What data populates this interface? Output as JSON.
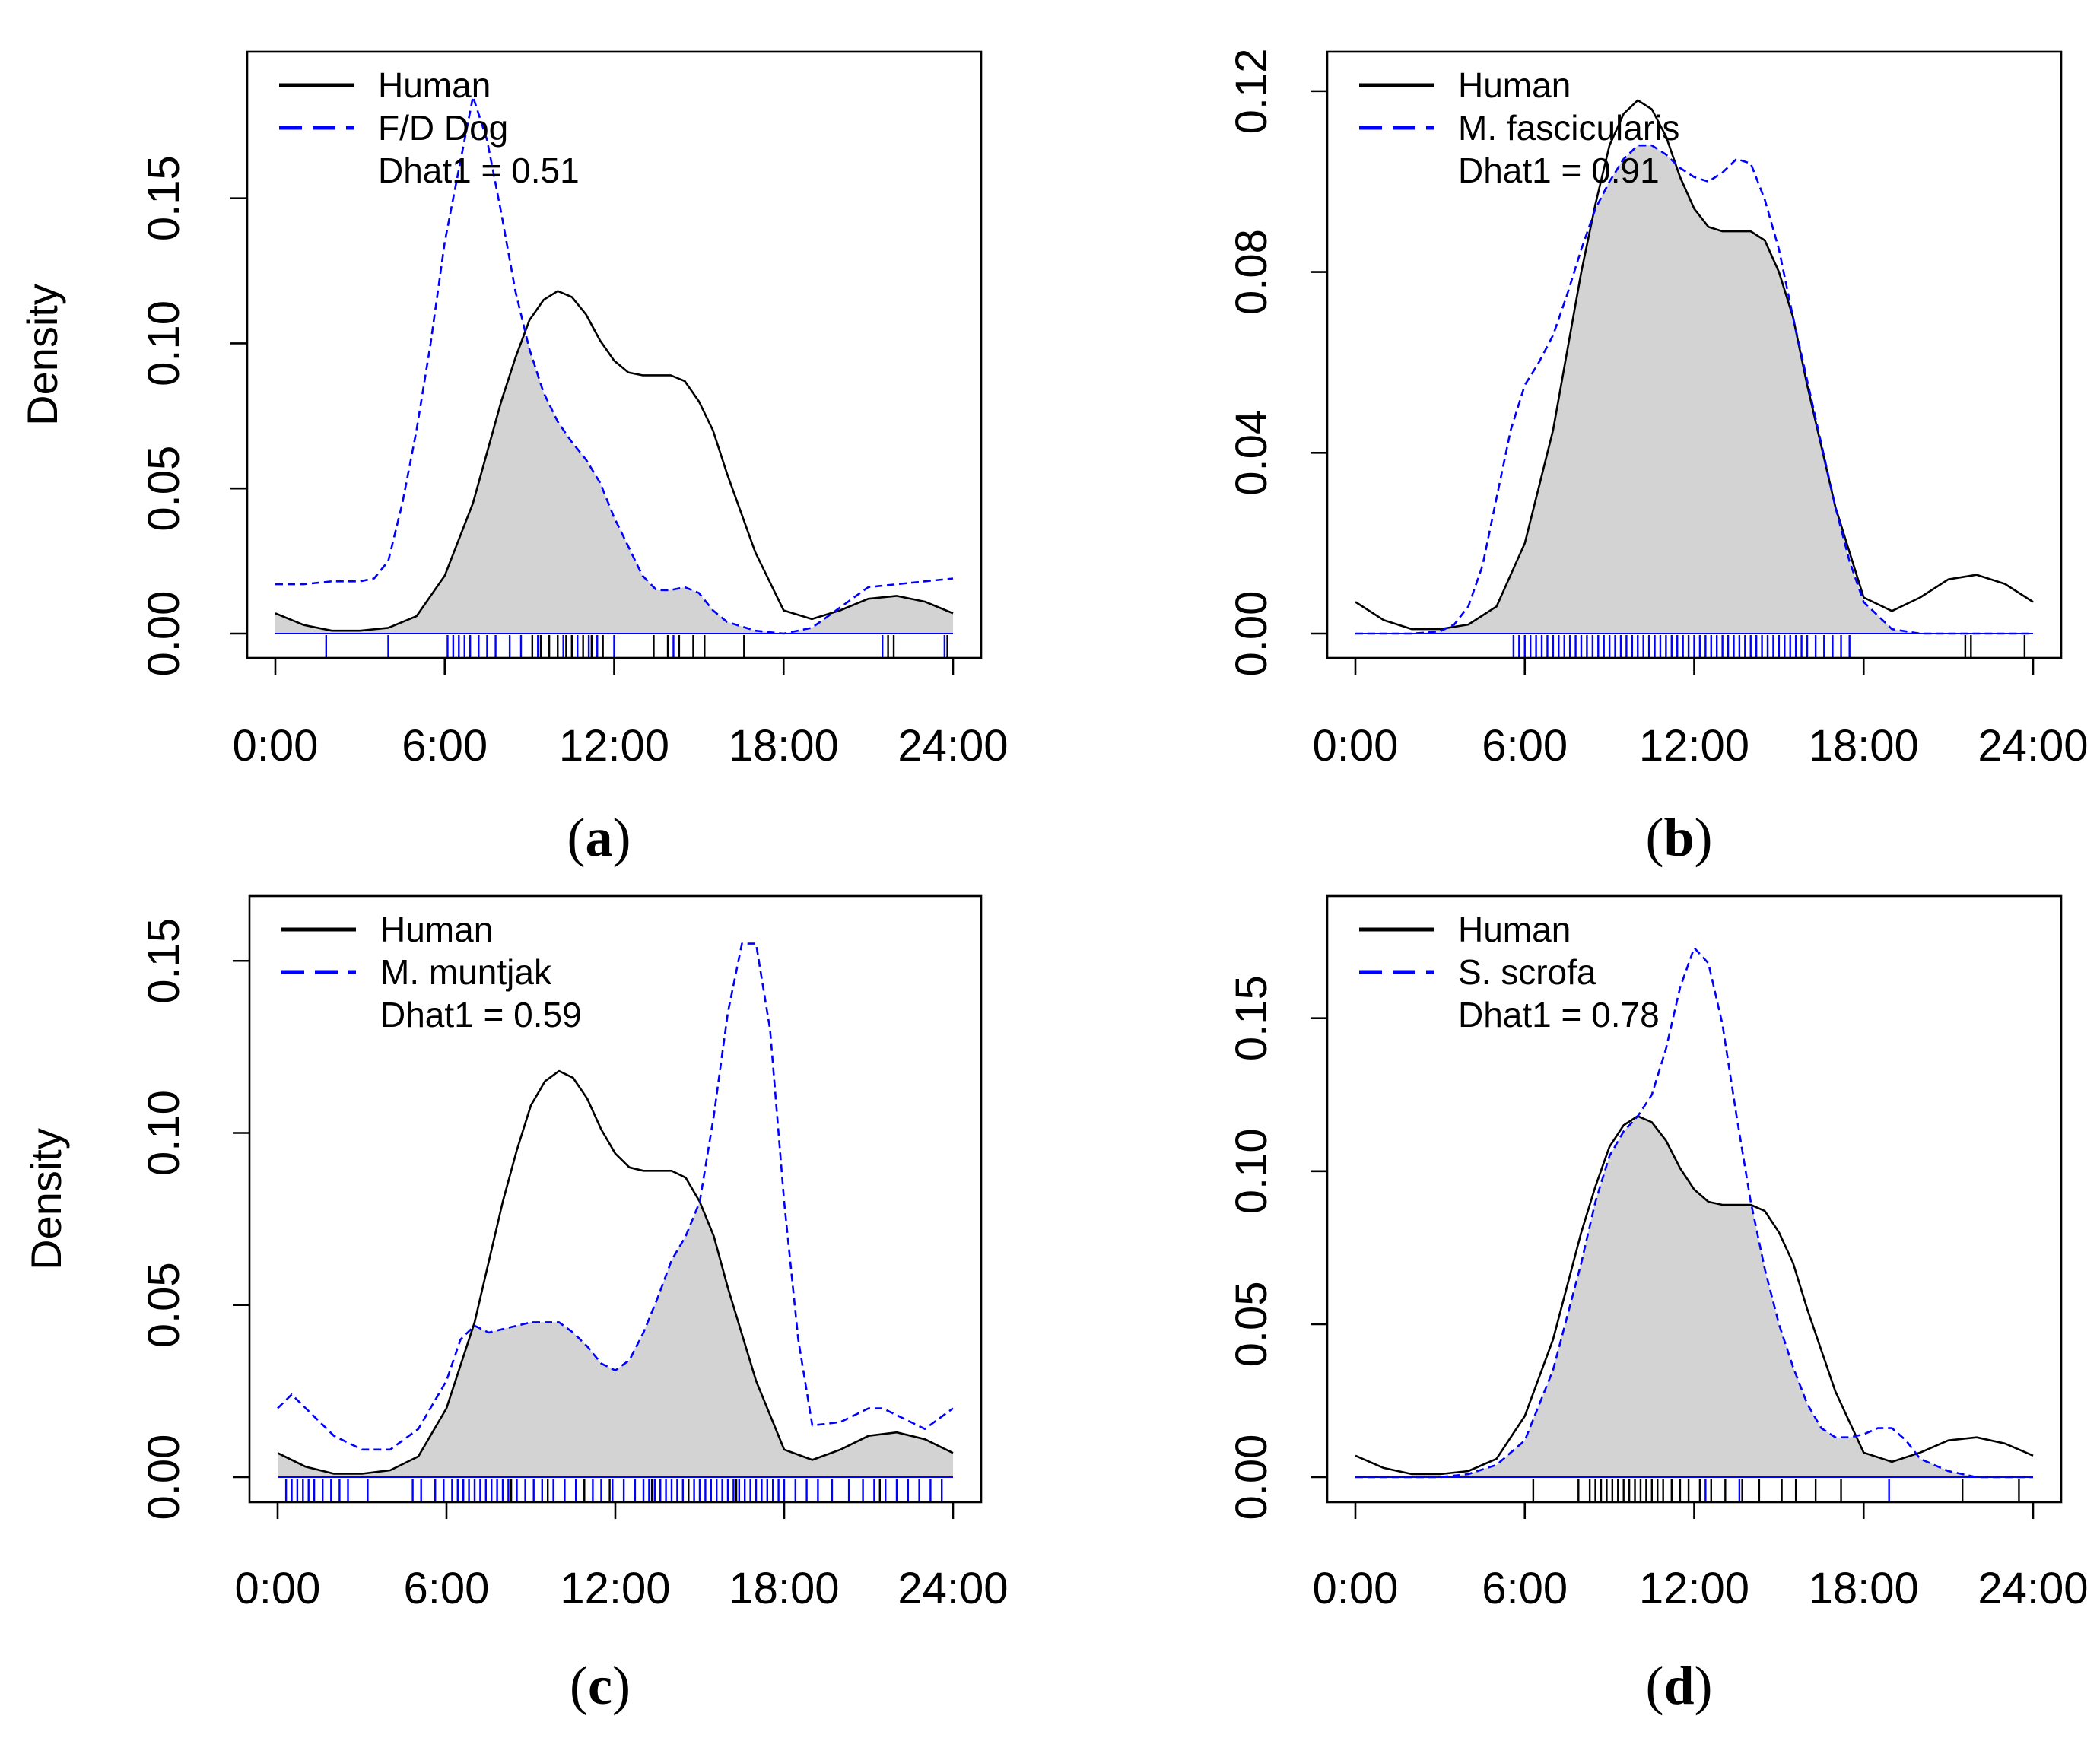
{
  "colors": {
    "human": "#000000",
    "species": "#0000FF",
    "overlap_fill": "#D3D3D3"
  },
  "x_tick_labels": [
    "0:00",
    "6:00",
    "12:00",
    "18:00",
    "24:00"
  ],
  "chart_data": [
    {
      "type": "line",
      "panel_label": {
        "open": "(",
        "letter": "a",
        "close": ")"
      },
      "ylabel": "Density",
      "xlim": [
        0,
        24
      ],
      "ylim": [
        0,
        0.19
      ],
      "y_ticks": [
        "0.00",
        "0.05",
        "0.10",
        "0.15"
      ],
      "y_tick_values": [
        0,
        0.05,
        0.1,
        0.15
      ],
      "legend": {
        "human": "Human",
        "species": "F/D Dog",
        "overlap": "Dhat1 = 0.51"
      },
      "series": [
        {
          "name": "Human",
          "style": "solid",
          "x": [
            0,
            1,
            2,
            3,
            4,
            5,
            6,
            7,
            8,
            8.5,
            9,
            9.5,
            10,
            10.5,
            11,
            11.5,
            12,
            12.5,
            13,
            13.5,
            14,
            14.5,
            15,
            15.5,
            16,
            17,
            18,
            19,
            20,
            21,
            22,
            23,
            24
          ],
          "y": [
            0.007,
            0.003,
            0.001,
            0.001,
            0.002,
            0.006,
            0.02,
            0.045,
            0.08,
            0.095,
            0.108,
            0.115,
            0.118,
            0.116,
            0.11,
            0.101,
            0.094,
            0.09,
            0.089,
            0.089,
            0.089,
            0.087,
            0.08,
            0.07,
            0.055,
            0.028,
            0.008,
            0.005,
            0.008,
            0.012,
            0.013,
            0.011,
            0.007
          ]
        },
        {
          "name": "F/D Dog",
          "style": "dashed",
          "x": [
            0,
            1,
            2,
            3,
            3.5,
            4,
            4.5,
            5,
            5.5,
            6,
            6.5,
            7,
            7.5,
            8,
            8.5,
            9,
            9.5,
            10,
            10.5,
            11,
            11.5,
            12,
            12.5,
            13,
            13.5,
            14,
            14.5,
            15,
            15.5,
            16,
            17,
            18,
            19,
            20,
            21,
            22,
            23,
            24
          ],
          "y": [
            0.017,
            0.017,
            0.018,
            0.018,
            0.019,
            0.025,
            0.045,
            0.07,
            0.1,
            0.135,
            0.16,
            0.185,
            0.17,
            0.145,
            0.118,
            0.098,
            0.083,
            0.073,
            0.066,
            0.06,
            0.052,
            0.04,
            0.03,
            0.02,
            0.015,
            0.015,
            0.016,
            0.014,
            0.008,
            0.004,
            0.001,
            0.0,
            0.002,
            0.009,
            0.016,
            0.017,
            0.018,
            0.019
          ]
        }
      ],
      "rug_human": [
        9.1,
        9.4,
        9.7,
        10.0,
        10.3,
        10.5,
        10.9,
        11.2,
        11.6,
        13.4,
        13.9,
        14.3,
        14.8,
        15.2,
        16.6,
        21.7,
        21.9,
        23.8
      ],
      "rug_species": [
        1.8,
        4.0,
        6.1,
        6.3,
        6.5,
        6.7,
        6.9,
        7.2,
        7.5,
        7.8,
        8.3,
        8.7,
        9.3,
        10.2,
        10.7,
        11.1,
        11.4,
        12.0,
        14.1,
        21.5,
        23.7
      ]
    },
    {
      "type": "line",
      "panel_label": {
        "open": "(",
        "letter": "b",
        "close": ")"
      },
      "ylabel": "",
      "xlim": [
        0,
        24
      ],
      "ylim": [
        0,
        0.122
      ],
      "y_ticks": [
        "0.00",
        "0.04",
        "0.08",
        "0.12"
      ],
      "y_tick_values": [
        0,
        0.04,
        0.08,
        0.12
      ],
      "legend": {
        "human": "Human",
        "species": "M. fascicularis",
        "overlap": "Dhat1 = 0.91"
      },
      "series": [
        {
          "name": "Human",
          "style": "solid",
          "x": [
            0,
            1,
            2,
            3,
            4,
            5,
            6,
            7,
            8,
            8.5,
            9,
            9.5,
            10,
            10.5,
            11,
            11.5,
            12,
            12.5,
            13,
            13.5,
            14,
            14.5,
            15,
            15.5,
            16,
            17,
            18,
            19,
            20,
            21,
            22,
            23,
            24
          ],
          "y": [
            0.007,
            0.003,
            0.001,
            0.001,
            0.002,
            0.006,
            0.02,
            0.045,
            0.08,
            0.095,
            0.108,
            0.115,
            0.118,
            0.116,
            0.11,
            0.101,
            0.094,
            0.09,
            0.089,
            0.089,
            0.089,
            0.087,
            0.08,
            0.07,
            0.055,
            0.028,
            0.008,
            0.005,
            0.008,
            0.012,
            0.013,
            0.011,
            0.007
          ]
        },
        {
          "name": "M. fascicularis",
          "style": "dashed",
          "x": [
            0,
            1,
            2,
            3,
            3.5,
            4,
            4.5,
            5,
            5.5,
            6,
            6.5,
            7,
            7.5,
            8,
            8.5,
            9,
            9.5,
            10,
            10.5,
            11,
            11.5,
            12,
            12.5,
            13,
            13.5,
            14,
            14.5,
            15,
            15.5,
            16,
            16.5,
            17,
            17.5,
            18,
            19,
            20,
            24
          ],
          "y": [
            0,
            0,
            0,
            0.0005,
            0.002,
            0.006,
            0.015,
            0.03,
            0.045,
            0.055,
            0.06,
            0.066,
            0.075,
            0.085,
            0.094,
            0.1,
            0.105,
            0.108,
            0.108,
            0.106,
            0.103,
            0.101,
            0.1,
            0.102,
            0.105,
            0.104,
            0.096,
            0.085,
            0.07,
            0.056,
            0.042,
            0.028,
            0.016,
            0.007,
            0.001,
            0,
            0
          ]
        }
      ],
      "rug_human": [
        21.6,
        21.8,
        23.7
      ],
      "rug_species": [
        5.6,
        5.8,
        6.0,
        6.2,
        6.4,
        6.6,
        6.8,
        7.0,
        7.2,
        7.4,
        7.6,
        7.8,
        8.0,
        8.2,
        8.4,
        8.6,
        8.8,
        9.0,
        9.2,
        9.4,
        9.6,
        9.8,
        10.0,
        10.2,
        10.4,
        10.6,
        10.8,
        11.0,
        11.2,
        11.4,
        11.6,
        11.8,
        12.0,
        12.2,
        12.4,
        12.6,
        12.8,
        13.0,
        13.2,
        13.4,
        13.6,
        13.8,
        14.0,
        14.2,
        14.4,
        14.6,
        14.8,
        15.0,
        15.2,
        15.4,
        15.6,
        15.8,
        16.0,
        16.3,
        16.6,
        16.9,
        17.2,
        17.5
      ]
    },
    {
      "type": "line",
      "panel_label": {
        "open": "(",
        "letter": "c",
        "close": ")"
      },
      "ylabel": "Density",
      "xlim": [
        0,
        24
      ],
      "ylim": [
        0,
        0.16
      ],
      "y_ticks": [
        "0.00",
        "0.05",
        "0.10",
        "0.15"
      ],
      "y_tick_values": [
        0,
        0.05,
        0.1,
        0.15
      ],
      "legend": {
        "human": "Human",
        "species": "M. muntjak",
        "overlap": "Dhat1 = 0.59"
      },
      "series": [
        {
          "name": "Human",
          "style": "solid",
          "x": [
            0,
            1,
            2,
            3,
            4,
            5,
            6,
            7,
            8,
            8.5,
            9,
            9.5,
            10,
            10.5,
            11,
            11.5,
            12,
            12.5,
            13,
            13.5,
            14,
            14.5,
            15,
            15.5,
            16,
            17,
            18,
            19,
            20,
            21,
            22,
            23,
            24
          ],
          "y": [
            0.007,
            0.003,
            0.001,
            0.001,
            0.002,
            0.006,
            0.02,
            0.045,
            0.08,
            0.095,
            0.108,
            0.115,
            0.118,
            0.116,
            0.11,
            0.101,
            0.094,
            0.09,
            0.089,
            0.089,
            0.089,
            0.087,
            0.08,
            0.07,
            0.055,
            0.028,
            0.008,
            0.005,
            0.008,
            0.012,
            0.013,
            0.011,
            0.007
          ]
        },
        {
          "name": "M. muntjak",
          "style": "dashed",
          "x": [
            0,
            0.5,
            1,
            2,
            3,
            4,
            5,
            6,
            6.5,
            7,
            7.5,
            8,
            9,
            10,
            10.5,
            11,
            11.5,
            12,
            12.5,
            13,
            13.5,
            14,
            14.5,
            15,
            15.5,
            16,
            16.5,
            17,
            17.5,
            18,
            18.5,
            19,
            20,
            21,
            21.5,
            22,
            23,
            24
          ],
          "y": [
            0.02,
            0.024,
            0.02,
            0.012,
            0.008,
            0.008,
            0.014,
            0.028,
            0.04,
            0.044,
            0.042,
            0.043,
            0.045,
            0.045,
            0.042,
            0.038,
            0.033,
            0.031,
            0.034,
            0.042,
            0.052,
            0.063,
            0.07,
            0.08,
            0.105,
            0.135,
            0.155,
            0.155,
            0.13,
            0.08,
            0.04,
            0.015,
            0.016,
            0.02,
            0.02,
            0.018,
            0.014,
            0.02
          ]
        }
      ],
      "rug_human": [
        8.3,
        9.6,
        10.9,
        11.8,
        13.3,
        14.6,
        16.3,
        21.4
      ],
      "rug_species": [
        0.3,
        0.5,
        0.7,
        0.9,
        1.1,
        1.3,
        1.6,
        1.9,
        2.2,
        2.5,
        3.2,
        4.8,
        5.1,
        5.6,
        5.9,
        6.2,
        6.4,
        6.6,
        6.8,
        7.0,
        7.2,
        7.4,
        7.6,
        7.8,
        8.0,
        8.2,
        8.5,
        8.8,
        9.1,
        9.4,
        9.8,
        10.2,
        10.6,
        10.9,
        11.2,
        11.5,
        11.9,
        12.3,
        12.7,
        13.0,
        13.2,
        13.4,
        13.6,
        13.8,
        14.0,
        14.2,
        14.4,
        14.6,
        14.8,
        15.0,
        15.2,
        15.4,
        15.6,
        15.8,
        16.0,
        16.2,
        16.4,
        16.6,
        16.8,
        17.0,
        17.2,
        17.4,
        17.6,
        17.8,
        18.0,
        18.4,
        18.8,
        19.2,
        19.7,
        20.3,
        20.8,
        21.2,
        21.6,
        22.0,
        22.4,
        22.8,
        23.2,
        23.6
      ]
    },
    {
      "type": "line",
      "panel_label": {
        "open": "(",
        "letter": "d",
        "close": ")"
      },
      "ylabel": "",
      "xlim": [
        0,
        24
      ],
      "ylim": [
        0,
        0.18
      ],
      "y_ticks": [
        "0.00",
        "0.05",
        "0.10",
        "0.15"
      ],
      "y_tick_values": [
        0,
        0.05,
        0.1,
        0.15
      ],
      "legend": {
        "human": "Human",
        "species": "S. scrofa",
        "overlap": "Dhat1 = 0.78"
      },
      "series": [
        {
          "name": "Human",
          "style": "solid",
          "x": [
            0,
            1,
            2,
            3,
            4,
            5,
            6,
            7,
            8,
            8.5,
            9,
            9.5,
            10,
            10.5,
            11,
            11.5,
            12,
            12.5,
            13,
            13.5,
            14,
            14.5,
            15,
            15.5,
            16,
            17,
            18,
            19,
            20,
            21,
            22,
            23,
            24
          ],
          "y": [
            0.007,
            0.003,
            0.001,
            0.001,
            0.002,
            0.006,
            0.02,
            0.045,
            0.08,
            0.095,
            0.108,
            0.115,
            0.118,
            0.116,
            0.11,
            0.101,
            0.094,
            0.09,
            0.089,
            0.089,
            0.089,
            0.087,
            0.08,
            0.07,
            0.055,
            0.028,
            0.008,
            0.005,
            0.008,
            0.012,
            0.013,
            0.011,
            0.007
          ]
        },
        {
          "name": "S. scrofa",
          "style": "dashed",
          "x": [
            0,
            3,
            4,
            5,
            6,
            7,
            8,
            8.5,
            9,
            9.5,
            10,
            10.5,
            11,
            11.5,
            12,
            12.5,
            13,
            13.5,
            14,
            14.5,
            15,
            15.5,
            16,
            16.5,
            17,
            17.5,
            18,
            18.5,
            19,
            19.5,
            20,
            21,
            22,
            23,
            24
          ],
          "y": [
            0,
            0,
            0.001,
            0.004,
            0.012,
            0.035,
            0.07,
            0.09,
            0.105,
            0.113,
            0.118,
            0.125,
            0.14,
            0.16,
            0.173,
            0.168,
            0.148,
            0.118,
            0.09,
            0.068,
            0.05,
            0.036,
            0.024,
            0.016,
            0.013,
            0.013,
            0.014,
            0.016,
            0.016,
            0.012,
            0.006,
            0.002,
            0,
            0,
            0
          ]
        }
      ],
      "rug_human": [
        6.3,
        7.9,
        8.3,
        8.5,
        8.7,
        8.9,
        9.1,
        9.3,
        9.5,
        9.7,
        9.9,
        10.1,
        10.3,
        10.5,
        10.7,
        10.9,
        11.2,
        11.5,
        11.8,
        12.2,
        12.6,
        13.1,
        13.7,
        14.3,
        15.1,
        15.6,
        16.3,
        17.2,
        21.5,
        23.5
      ],
      "rug_species": [
        12.4,
        13.6,
        18.9
      ]
    }
  ]
}
